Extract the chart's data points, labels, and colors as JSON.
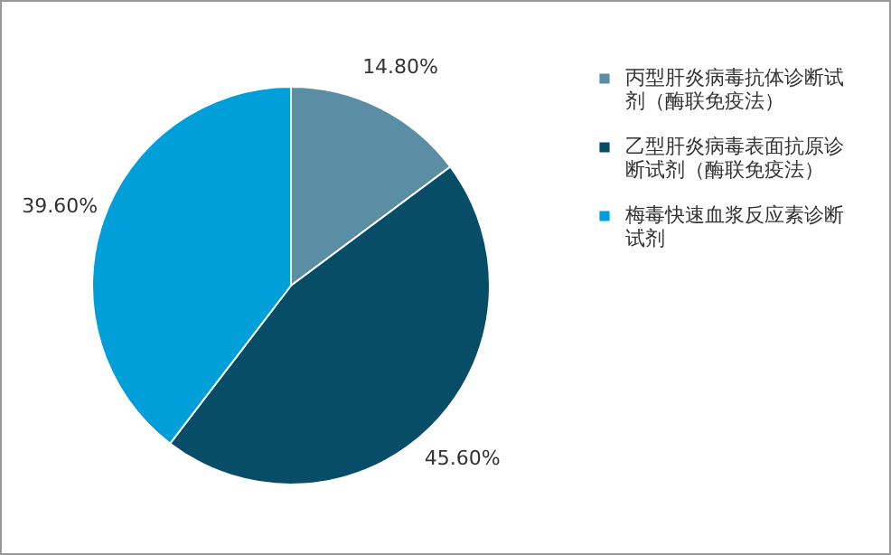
{
  "chart_data": {
    "type": "pie",
    "categories": [
      "丙型肝炎病毒抗体诊断试剂（酶联免疫法）",
      "乙型肝炎病毒表面抗原诊断试剂（酶联免疫法）",
      "梅毒快速血浆反应素诊断试剂"
    ],
    "values": [
      14.8,
      45.6,
      39.6
    ],
    "colors": [
      "#5b8ea5",
      "#084d68",
      "#009fd9"
    ],
    "value_labels": [
      "14.80%",
      "45.60%",
      "39.60%"
    ],
    "legend": "right"
  }
}
